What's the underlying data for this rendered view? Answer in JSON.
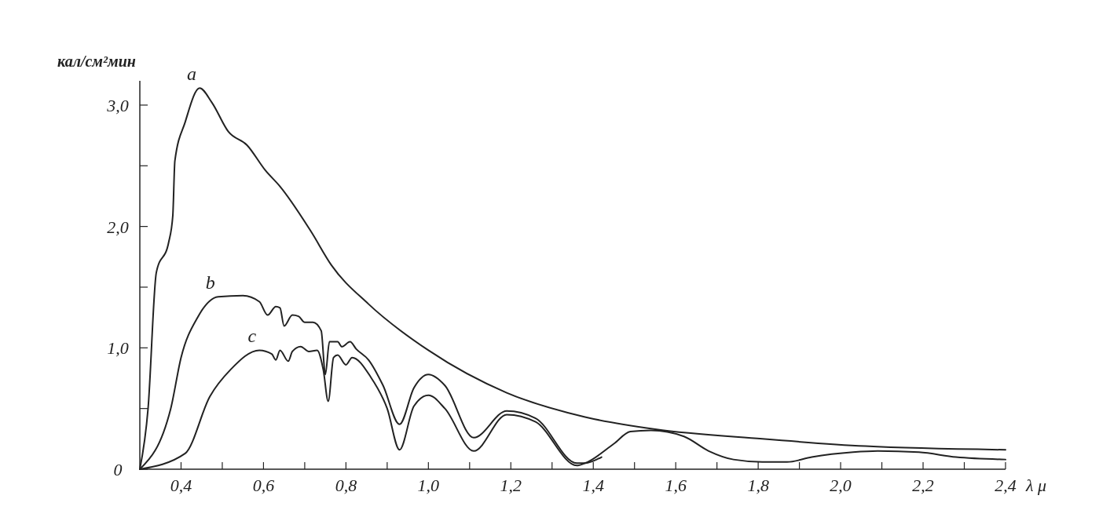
{
  "chart_data": {
    "type": "line",
    "xlabel": "λ μ",
    "ylabel": "кал/см²мин",
    "xlim": [
      0.3,
      2.4
    ],
    "ylim": [
      0,
      3.2
    ],
    "xticks": [
      {
        "value": 0.4,
        "label": "0,4"
      },
      {
        "value": 0.5,
        "label": null
      },
      {
        "value": 0.6,
        "label": "0,6"
      },
      {
        "value": 0.7,
        "label": null
      },
      {
        "value": 0.8,
        "label": "0,8"
      },
      {
        "value": 0.9,
        "label": null
      },
      {
        "value": 1.0,
        "label": "1,0"
      },
      {
        "value": 1.1,
        "label": null
      },
      {
        "value": 1.2,
        "label": "1,2"
      },
      {
        "value": 1.3,
        "label": null
      },
      {
        "value": 1.4,
        "label": "1,4"
      },
      {
        "value": 1.5,
        "label": null
      },
      {
        "value": 1.6,
        "label": "1,6"
      },
      {
        "value": 1.7,
        "label": null
      },
      {
        "value": 1.8,
        "label": "1,8"
      },
      {
        "value": 1.9,
        "label": null
      },
      {
        "value": 2.0,
        "label": "2,0"
      },
      {
        "value": 2.1,
        "label": null
      },
      {
        "value": 2.2,
        "label": "2,2"
      },
      {
        "value": 2.3,
        "label": null
      },
      {
        "value": 2.4,
        "label": "2,4"
      }
    ],
    "yticks": [
      0,
      {
        "value": 0.5,
        "label": null
      },
      {
        "value": 1.0,
        "label": "1,0"
      },
      {
        "value": 1.5,
        "label": null
      },
      {
        "value": 2.0,
        "label": "2,0"
      },
      {
        "value": 2.5,
        "label": null
      },
      {
        "value": 3.0,
        "label": "3,0"
      }
    ],
    "grid": false,
    "marker": "none",
    "line_style": "solid",
    "series": [
      {
        "name": "a",
        "color": "#222222",
        "x": [
          0.3,
          0.32,
          0.34,
          0.37,
          0.38,
          0.385,
          0.41,
          0.445,
          0.475,
          0.515,
          0.56,
          0.605,
          0.64,
          0.715,
          0.765,
          0.855,
          1.0,
          1.19,
          1.38,
          1.55,
          1.81,
          2.06,
          2.4
        ],
        "values": [
          0,
          0.5,
          1.62,
          1.87,
          2.09,
          2.54,
          2.86,
          3.14,
          3.02,
          2.78,
          2.67,
          2.46,
          2.33,
          1.96,
          1.68,
          1.36,
          0.98,
          0.63,
          0.43,
          0.33,
          0.25,
          0.19,
          0.16
        ]
      },
      {
        "name": "b",
        "color": "#222222",
        "x": [
          0.3,
          0.375,
          0.4,
          0.44,
          0.49,
          0.55,
          0.59,
          0.61,
          0.63,
          0.64,
          0.65,
          0.67,
          0.685,
          0.7,
          0.72,
          0.74,
          0.75,
          0.76,
          0.78,
          0.79,
          0.81,
          0.825,
          0.855,
          0.89,
          0.93,
          0.965,
          1.0,
          1.04,
          1.11,
          1.19,
          1.26,
          1.36,
          1.38,
          1.42
        ],
        "values": [
          0,
          0.5,
          0.92,
          1.25,
          1.42,
          1.43,
          1.38,
          1.27,
          1.34,
          1.33,
          1.18,
          1.27,
          1.26,
          1.21,
          1.21,
          1.14,
          0.78,
          1.05,
          1.05,
          1.01,
          1.05,
          0.99,
          0.9,
          0.69,
          0.37,
          0.67,
          0.78,
          0.69,
          0.26,
          0.48,
          0.42,
          0.05,
          0.05,
          0.1
        ]
      },
      {
        "name": "c",
        "color": "#222222",
        "x": [
          0.3,
          0.41,
          0.47,
          0.52,
          0.59,
          0.62,
          0.63,
          0.64,
          0.66,
          0.67,
          0.69,
          0.71,
          0.73,
          0.745,
          0.757,
          0.77,
          0.78,
          0.8,
          0.815,
          0.86,
          0.9,
          0.93,
          0.965,
          1.0,
          1.04,
          1.11,
          1.19,
          1.26,
          1.36,
          1.38,
          1.45,
          1.49,
          1.54,
          1.62,
          1.68,
          1.74,
          1.81,
          1.87,
          1.93,
          2.03,
          2.09,
          2.19,
          2.28,
          2.4
        ],
        "values": [
          0,
          0.13,
          0.6,
          0.82,
          0.98,
          0.95,
          0.9,
          0.98,
          0.89,
          0.97,
          1.01,
          0.97,
          0.98,
          0.82,
          0.56,
          0.92,
          0.94,
          0.86,
          0.92,
          0.76,
          0.5,
          0.16,
          0.52,
          0.61,
          0.5,
          0.15,
          0.45,
          0.39,
          0.03,
          0.05,
          0.21,
          0.31,
          0.32,
          0.27,
          0.15,
          0.08,
          0.06,
          0.06,
          0.1,
          0.14,
          0.15,
          0.14,
          0.1,
          0.08
        ]
      }
    ]
  }
}
